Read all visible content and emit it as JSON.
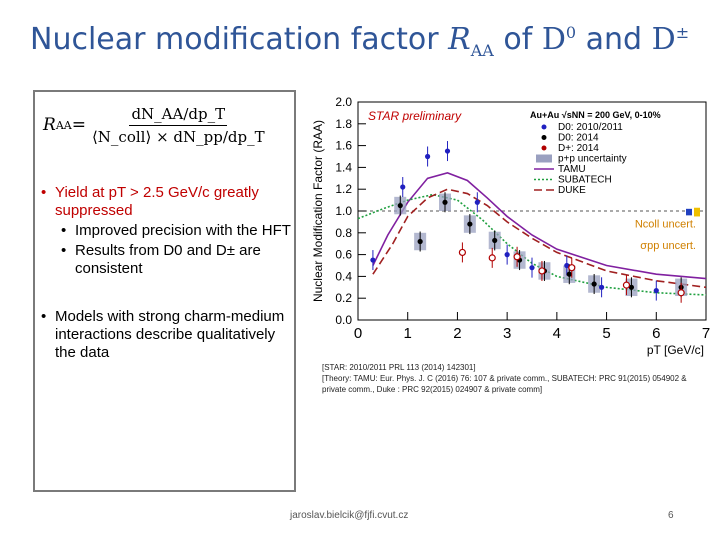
{
  "title": {
    "prefix": "Nuclear modification factor ",
    "r": "R",
    "r_sub": "AA",
    "of": " of ",
    "d0": "D",
    "d0_sup": "0",
    "and": " and ",
    "dpm": "D",
    "dpm_sup": "±"
  },
  "formula": {
    "lhs": "R",
    "lhs_sub": "AA",
    "eq": " = ",
    "numerator": "dN_AA/dp_T",
    "denominator": "⟨N_coll⟩ × dN_pp/dp_T"
  },
  "bullets": {
    "b1_red": "Yield at pT > 2.5 GeV/c greatly suppressed",
    "b1_sub1": "Improved precision with the HFT",
    "b1_sub2": "Results from D0 and D± are consistent",
    "b2": "Models with strong charm-medium interactions describe qualitatively the data"
  },
  "refs": {
    "line1": "[STAR: 2010/2011 PRL 113 (2014) 142301]",
    "line2": "[Theory: TAMU: Eur. Phys. J. C (2016) 76: 107 & private comm., SUBATECH: PRC 91(2015) 054902 & private comm., Duke : PRC 92(2015) 024907 & private comm]"
  },
  "footer": {
    "email": "jaroslav.bielcik@fjfi.cvut.cz",
    "page": "6"
  },
  "chart_data": {
    "type": "scatter",
    "title": "STAR preliminary",
    "xlabel": "pT [GeV/c]",
    "ylabel": "Nuclear Modification Factor (RAA)",
    "xlim": [
      0,
      7
    ],
    "ylim": [
      0,
      2.0
    ],
    "xticks": [
      "0",
      "1",
      "2",
      "3",
      "4",
      "5",
      "6",
      "7"
    ],
    "yticks": [
      "0.0",
      "0.2",
      "0.4",
      "0.6",
      "0.8",
      "1.0",
      "1.2",
      "1.4",
      "1.6",
      "1.8",
      "2.0"
    ],
    "system": "Au+Au √sNN = 200 GeV, 0-10%",
    "uncert_labels": [
      "Ncoll uncert.",
      "σpp uncert."
    ],
    "series": [
      {
        "name": "D0: 2010/2011",
        "color": "#2020c0",
        "marker": "circle",
        "x": [
          0.3,
          0.9,
          1.4,
          1.8,
          2.4,
          3.0,
          3.5,
          4.2,
          4.9,
          6.0
        ],
        "y": [
          0.55,
          1.22,
          1.5,
          1.55,
          1.08,
          0.6,
          0.48,
          0.5,
          0.3,
          0.27
        ]
      },
      {
        "name": "D0: 2014",
        "color": "#000000",
        "marker": "circle",
        "x": [
          0.85,
          1.25,
          1.75,
          2.25,
          2.75,
          3.25,
          3.75,
          4.25,
          4.75,
          5.5,
          6.5
        ],
        "y": [
          1.05,
          0.72,
          1.08,
          0.88,
          0.73,
          0.55,
          0.45,
          0.42,
          0.33,
          0.3,
          0.3
        ]
      },
      {
        "name": "D+: 2014",
        "color": "#b00000",
        "marker": "star",
        "x": [
          2.1,
          2.7,
          3.2,
          3.7,
          4.3,
          5.4,
          6.5
        ],
        "y": [
          0.62,
          0.57,
          0.58,
          0.45,
          0.48,
          0.32,
          0.25
        ]
      }
    ],
    "models": [
      {
        "name": "TAMU",
        "color": "#8020a0",
        "style": "solid",
        "x": [
          0.3,
          0.6,
          1.0,
          1.4,
          1.8,
          2.2,
          2.6,
          3.0,
          3.5,
          4.0,
          5.0,
          6.0,
          7.0
        ],
        "y": [
          0.5,
          0.78,
          1.08,
          1.3,
          1.35,
          1.28,
          1.12,
          0.95,
          0.78,
          0.65,
          0.5,
          0.42,
          0.38
        ]
      },
      {
        "name": "SUBATECH",
        "color": "#20a040",
        "style": "dotted",
        "x": [
          0.0,
          0.5,
          1.0,
          1.5,
          2.0,
          2.5,
          3.0,
          3.5,
          4.0,
          5.0,
          6.0,
          7.0
        ],
        "y": [
          0.93,
          1.02,
          1.1,
          1.15,
          1.1,
          0.92,
          0.7,
          0.52,
          0.4,
          0.3,
          0.25,
          0.23
        ]
      },
      {
        "name": "DUKE",
        "color": "#a02020",
        "style": "dashed",
        "x": [
          0.3,
          0.7,
          1.0,
          1.4,
          1.8,
          2.2,
          2.6,
          3.0,
          3.5,
          4.0,
          5.0,
          6.0,
          7.0
        ],
        "y": [
          0.42,
          0.7,
          0.95,
          1.12,
          1.2,
          1.16,
          1.05,
          0.9,
          0.75,
          0.62,
          0.45,
          0.36,
          0.3
        ]
      }
    ],
    "legend_labels": {
      "d0_2010": "D0: 2010/2011",
      "d0_2014": "D0: 2014",
      "dp_2014": "D+: 2014",
      "pp": "p+p uncertainty",
      "tamu": "TAMU",
      "subatech": "SUBATECH",
      "duke": "DUKE"
    },
    "legend_placement": "top-right",
    "grid": false
  }
}
